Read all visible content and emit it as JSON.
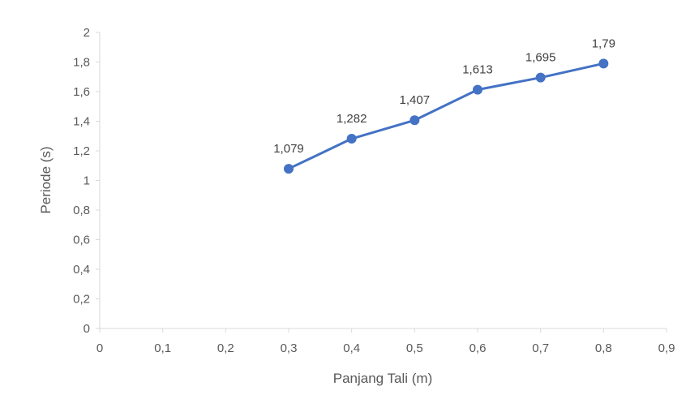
{
  "chart_data": {
    "type": "line",
    "xlabel": "Panjang Tali (m)",
    "ylabel": "Periode (s)",
    "xlim": [
      0,
      0.9
    ],
    "ylim": [
      0,
      2
    ],
    "x_ticks": [
      "0",
      "0,1",
      "0,2",
      "0,3",
      "0,4",
      "0,5",
      "0,6",
      "0,7",
      "0,8",
      "0,9"
    ],
    "y_ticks": [
      "0",
      "0,2",
      "0,4",
      "0,6",
      "0,8",
      "1",
      "1,2",
      "1,4",
      "1,6",
      "1,8",
      "2"
    ],
    "grid": false,
    "series": [
      {
        "x": [
          0.3,
          0.4,
          0.5,
          0.6,
          0.7,
          0.8
        ],
        "y": [
          1.079,
          1.282,
          1.407,
          1.613,
          1.695,
          1.79
        ],
        "labels": [
          "1,079",
          "1,282",
          "1,407",
          "1,613",
          "1,695",
          "1,79"
        ],
        "color": "#4472C4"
      }
    ]
  }
}
